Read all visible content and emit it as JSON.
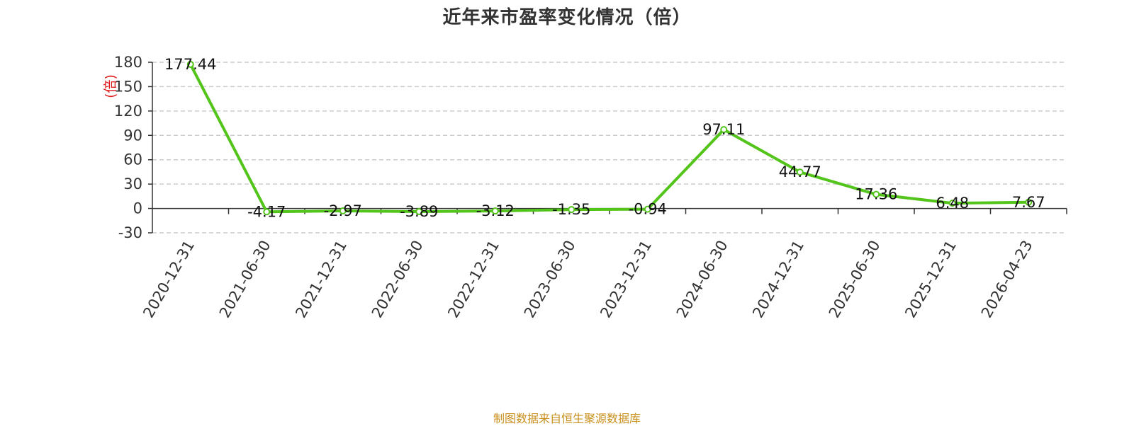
{
  "title": "近年来市盈率变化情况（倍）",
  "footer": "制图数据来自恒生聚源数据库",
  "chart_data": {
    "type": "line",
    "title": "近年来市盈率变化情况（倍）",
    "ylabel": "(倍)",
    "xlabel": "",
    "categories": [
      "2020-12-31",
      "2021-06-30",
      "2021-12-31",
      "2022-06-30",
      "2022-12-31",
      "2023-06-30",
      "2023-12-31",
      "2024-06-30",
      "2024-12-31",
      "2025-06-30",
      "2025-12-31",
      "2026-04-23"
    ],
    "values": [
      177.44,
      -4.17,
      -2.97,
      -3.89,
      -3.12,
      -1.35,
      -0.94,
      97.11,
      44.77,
      17.36,
      6.48,
      7.67
    ],
    "data_labels": [
      "177.44",
      "-4.17",
      "-2.97",
      "-3.89",
      "-3.12",
      "-1.35",
      "-0.94",
      "97.11",
      "44.77",
      "17.36",
      "6.48",
      "7.67"
    ],
    "y_ticks": [
      180,
      150,
      120,
      90,
      60,
      30,
      0,
      -30
    ],
    "ylim": [
      -30,
      180
    ],
    "grid": true,
    "legend": "none",
    "line_color": "#52c41a"
  }
}
